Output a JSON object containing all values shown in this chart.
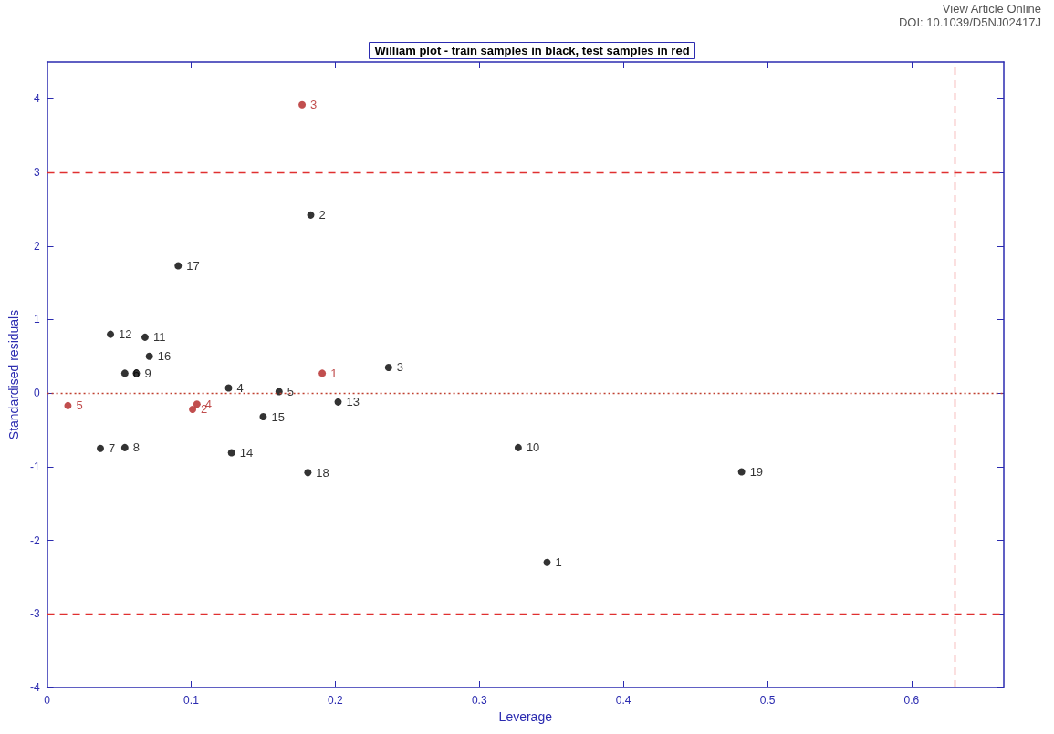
{
  "chart_data": {
    "type": "scatter",
    "title": "William plot - train samples in black, test samples in red",
    "xlabel": "Leverage",
    "ylabel": "Standardised residuals",
    "annotations": [
      "View Article Online",
      "DOI: 10.1039/D5NJ02417J",
      {
        "text": "1",
        "x": 0.347,
        "y": -2.3
      },
      {
        "text": "2",
        "x": 0.183,
        "y": 2.42
      },
      {
        "text": "3",
        "x": 0.237,
        "y": 0.35
      },
      {
        "text": "4",
        "x": 0.126,
        "y": 0.07
      },
      {
        "text": "5",
        "x": 0.161,
        "y": 0.02
      },
      {
        "text": "6",
        "x": 0.054,
        "y": 0.27
      },
      {
        "text": "7",
        "x": 0.037,
        "y": -0.75
      },
      {
        "text": "8",
        "x": 0.054,
        "y": -0.74
      },
      {
        "text": "9",
        "x": 0.062,
        "y": 0.27
      },
      {
        "text": "10",
        "x": 0.327,
        "y": -0.74
      },
      {
        "text": "11",
        "x": 0.068,
        "y": 0.76
      },
      {
        "text": "12",
        "x": 0.044,
        "y": 0.8
      },
      {
        "text": "13",
        "x": 0.202,
        "y": -0.12
      },
      {
        "text": "14",
        "x": 0.128,
        "y": -0.81
      },
      {
        "text": "15",
        "x": 0.15,
        "y": -0.32
      },
      {
        "text": "16",
        "x": 0.071,
        "y": 0.5
      },
      {
        "text": "17",
        "x": 0.091,
        "y": 1.73
      },
      {
        "text": "18",
        "x": 0.181,
        "y": -1.08
      },
      {
        "text": "19",
        "x": 0.482,
        "y": -1.07
      },
      {
        "text": "1",
        "x": 0.191,
        "y": 0.27
      },
      {
        "text": "2",
        "x": 0.101,
        "y": -0.22
      },
      {
        "text": "3",
        "x": 0.177,
        "y": 3.92
      },
      {
        "text": "4",
        "x": 0.104,
        "y": -0.15
      },
      {
        "text": "5",
        "x": 0.0145,
        "y": -0.17
      }
    ],
    "series": [
      {
        "color": "#000000",
        "x": [
          0.347,
          0.183,
          0.237,
          0.126,
          0.161,
          0.054,
          0.037,
          0.054,
          0.062,
          0.327,
          0.068,
          0.044,
          0.202,
          0.128,
          0.15,
          0.071,
          0.091,
          0.181,
          0.482
        ],
        "values": [
          -2.3,
          2.42,
          0.35,
          0.07,
          0.02,
          0.27,
          -0.75,
          -0.74,
          0.27,
          -0.74,
          0.76,
          0.8,
          -0.12,
          -0.81,
          -0.32,
          0.5,
          1.73,
          -1.08,
          -1.07
        ]
      },
      {
        "color": "#b22222",
        "x": [
          0.191,
          0.101,
          0.177,
          0.104,
          0.0145
        ],
        "values": [
          0.27,
          -0.22,
          3.92,
          -0.15,
          -0.17
        ]
      }
    ],
    "xlim": [
      0,
      0.664
    ],
    "xticks": [
      0,
      0.1,
      0.2,
      0.3,
      0.4,
      0.5,
      0.6
    ],
    "ylim": [
      -4,
      4.5
    ],
    "yticks": [
      -4,
      -3,
      -2,
      -1,
      0,
      1,
      2,
      3,
      4
    ],
    "ref_lines": [
      {
        "axis": "y",
        "value": 3,
        "color": "#e03030",
        "line_style": "dashed"
      },
      {
        "axis": "y",
        "value": -3,
        "color": "#e03030",
        "line_style": "dashed"
      },
      {
        "axis": "x",
        "value": 0.631,
        "color": "#e03030",
        "line_style": "dashed"
      },
      {
        "axis": "y",
        "value": 0,
        "color": "#c04030",
        "line_style": "dotted"
      }
    ],
    "marker": "circle",
    "grid": false
  }
}
